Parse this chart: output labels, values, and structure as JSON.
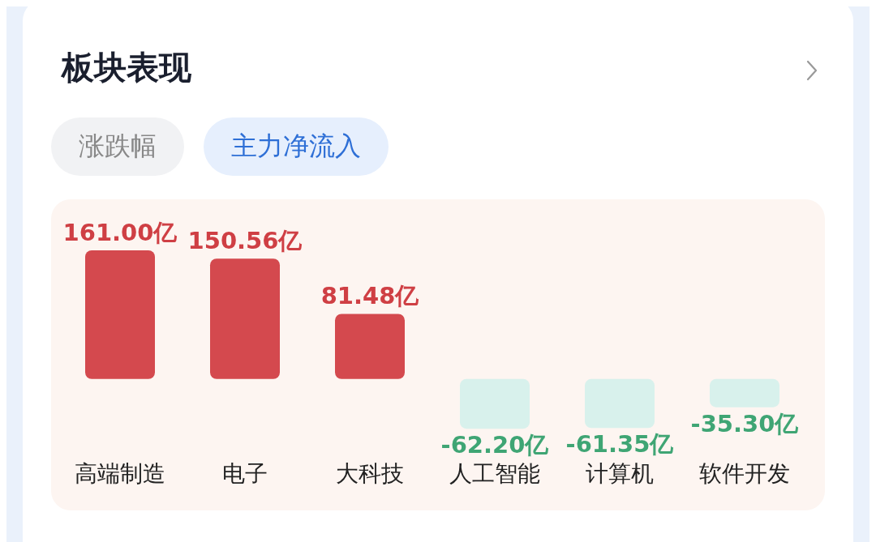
{
  "chart_data": {
    "type": "bar",
    "title": "板块表现",
    "annotations": [
      "涨跌幅",
      "主力净流入"
    ],
    "categories": [
      "高端制造",
      "电子",
      "大科技",
      "人工智能",
      "计算机",
      "软件开发"
    ],
    "values": [
      161.0,
      150.56,
      81.48,
      -62.2,
      -61.35,
      -35.3
    ],
    "colors": [
      "#d4494e",
      "#d4494e",
      "#d4494e",
      "#d8f1ec",
      "#d8f1ec",
      "#d8f1ec"
    ],
    "value_labels": [
      "161.00亿",
      "150.56亿",
      "81.48亿",
      "-62.20亿",
      "-61.35亿",
      "-35.30亿"
    ],
    "grid": false,
    "legend": false
  }
}
